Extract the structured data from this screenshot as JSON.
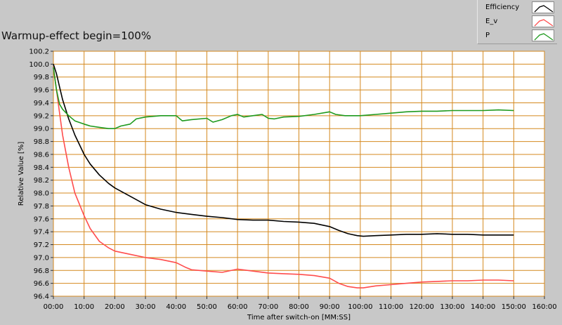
{
  "chart_data": {
    "type": "line",
    "title": "Warmup-effect begin=100%",
    "xlabel": "Time after switch-on [MM:SS]",
    "ylabel": "Relative Value [%]",
    "xlim": [
      0,
      160
    ],
    "ylim": [
      96.4,
      100.2
    ],
    "grid": true,
    "legend_position": "top-right",
    "x_ticks": [
      0,
      10,
      20,
      30,
      40,
      50,
      60,
      70,
      80,
      90,
      100,
      110,
      120,
      130,
      140,
      150,
      160
    ],
    "x_tick_labels": [
      "00:00",
      "10:00",
      "20:00",
      "30:00",
      "40:00",
      "50:00",
      "60:00",
      "70:00",
      "80:00",
      "90:00",
      "100:00",
      "110:00",
      "120:00",
      "130:00",
      "140:00",
      "150:00",
      "160:00"
    ],
    "y_ticks": [
      96.4,
      96.6,
      96.8,
      97.0,
      97.2,
      97.4,
      97.6,
      97.8,
      98.0,
      98.2,
      98.4,
      98.6,
      98.8,
      99.0,
      99.2,
      99.4,
      99.6,
      99.8,
      100.0,
      100.2
    ],
    "y_tick_labels": [
      "96.4",
      "96.6",
      "96.8",
      "97.0",
      "97.2",
      "97.4",
      "97.6",
      "97.8",
      "98.0",
      "98.2",
      "98.4",
      "98.6",
      "98.8",
      "99.0",
      "99.2",
      "99.4",
      "99.6",
      "99.8",
      "100.0",
      "100.2"
    ],
    "series": [
      {
        "name": "Efficiency",
        "color": "#000000",
        "x": [
          0,
          1,
          2,
          3,
          5,
          7,
          10,
          12,
          15,
          18,
          20,
          25,
          30,
          35,
          40,
          45,
          50,
          55,
          60,
          65,
          70,
          75,
          80,
          85,
          90,
          93,
          96,
          99,
          101,
          105,
          110,
          115,
          120,
          125,
          130,
          135,
          140,
          145,
          150
        ],
        "y": [
          100.0,
          99.85,
          99.65,
          99.45,
          99.15,
          98.9,
          98.6,
          98.45,
          98.28,
          98.15,
          98.08,
          97.95,
          97.82,
          97.75,
          97.7,
          97.67,
          97.64,
          97.62,
          97.59,
          97.58,
          97.58,
          97.56,
          97.55,
          97.53,
          97.48,
          97.42,
          97.37,
          97.34,
          97.33,
          97.34,
          97.35,
          97.36,
          97.36,
          97.37,
          97.36,
          97.36,
          97.35,
          97.35,
          97.35
        ]
      },
      {
        "name": "E_v",
        "color": "#ff4d4d",
        "x": [
          0,
          1,
          2,
          3,
          5,
          7,
          10,
          12,
          15,
          18,
          20,
          25,
          30,
          35,
          40,
          43,
          45,
          50,
          55,
          60,
          65,
          70,
          75,
          80,
          85,
          90,
          93,
          96,
          99,
          101,
          105,
          110,
          115,
          120,
          125,
          130,
          135,
          140,
          145,
          150
        ],
        "y": [
          99.95,
          99.6,
          99.25,
          98.9,
          98.4,
          98.0,
          97.65,
          97.45,
          97.25,
          97.15,
          97.1,
          97.05,
          97.0,
          96.97,
          96.92,
          96.85,
          96.81,
          96.79,
          96.77,
          96.82,
          96.79,
          96.76,
          96.75,
          96.74,
          96.72,
          96.68,
          96.6,
          96.55,
          96.53,
          96.53,
          96.56,
          96.58,
          96.6,
          96.62,
          96.63,
          96.64,
          96.64,
          96.65,
          96.65,
          96.64
        ]
      },
      {
        "name": "P",
        "color": "#1e9a1e",
        "x": [
          0,
          1,
          2,
          3,
          5,
          7,
          10,
          12,
          15,
          18,
          20,
          22,
          25,
          27,
          30,
          35,
          40,
          42,
          45,
          50,
          52,
          55,
          58,
          60,
          62,
          65,
          68,
          70,
          72,
          75,
          80,
          85,
          90,
          92,
          95,
          100,
          105,
          110,
          115,
          120,
          125,
          130,
          135,
          140,
          145,
          150
        ],
        "y": [
          99.95,
          99.6,
          99.38,
          99.3,
          99.2,
          99.12,
          99.07,
          99.04,
          99.02,
          99.0,
          99.0,
          99.04,
          99.07,
          99.15,
          99.18,
          99.2,
          99.2,
          99.12,
          99.14,
          99.16,
          99.1,
          99.14,
          99.2,
          99.22,
          99.18,
          99.2,
          99.22,
          99.16,
          99.15,
          99.18,
          99.19,
          99.22,
          99.26,
          99.22,
          99.2,
          99.2,
          99.22,
          99.24,
          99.26,
          99.27,
          99.27,
          99.28,
          99.28,
          99.28,
          99.29,
          99.28
        ]
      }
    ]
  }
}
